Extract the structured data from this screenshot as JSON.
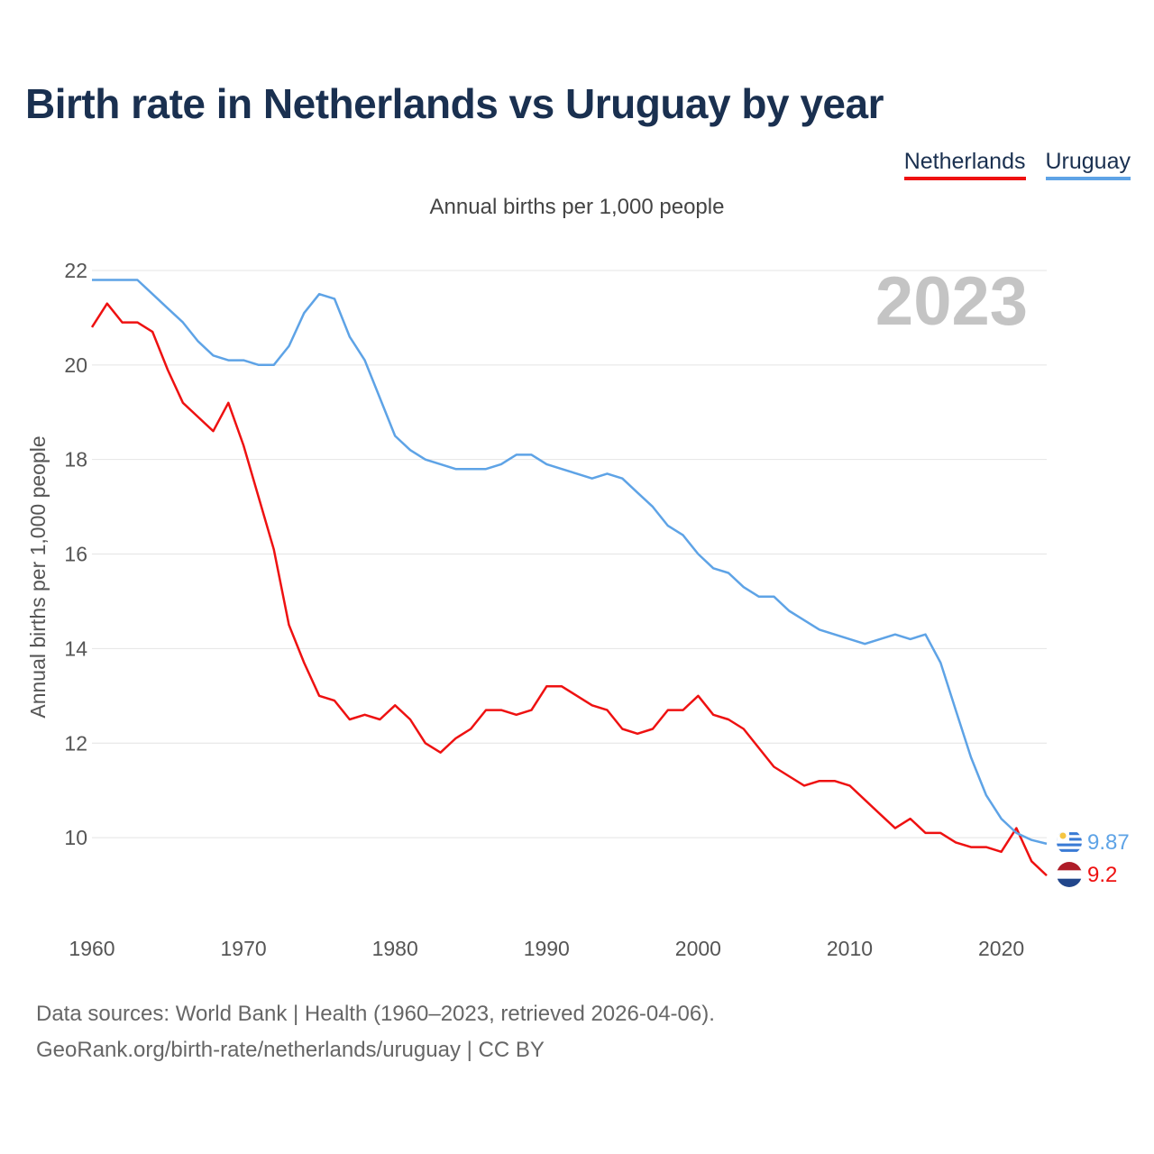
{
  "title": "Birth rate in Netherlands vs Uruguay by year",
  "legend": [
    {
      "label": "Netherlands",
      "color": "#ee1111"
    },
    {
      "label": "Uruguay",
      "color": "#5ea3e6"
    }
  ],
  "subtitle": "Annual births per 1,000 people",
  "source_line1": "Data sources: World Bank | Health (1960–2023, retrieved 2026-04-06).",
  "source_line2": "GeoRank.org/birth-rate/netherlands/uruguay | CC BY",
  "chart_data": {
    "type": "line",
    "title": "Birth rate in Netherlands vs Uruguay by year",
    "ylabel": "Annual births per 1,000 people",
    "xlabel": "",
    "year_label": "2023",
    "xlim": [
      1960,
      2023
    ],
    "ylim": [
      8.4,
      22.4
    ],
    "x_ticks": [
      1960,
      1970,
      1980,
      1990,
      2000,
      2010,
      2020
    ],
    "y_ticks": [
      10,
      12,
      14,
      16,
      18,
      20,
      22
    ],
    "grid": true,
    "series": [
      {
        "name": "Netherlands",
        "color": "#ee1111",
        "end_label": "9.2",
        "flag": "netherlands-flag-icon",
        "x": [
          1960,
          1961,
          1962,
          1963,
          1964,
          1965,
          1966,
          1967,
          1968,
          1969,
          1970,
          1971,
          1972,
          1973,
          1974,
          1975,
          1976,
          1977,
          1978,
          1979,
          1980,
          1981,
          1982,
          1983,
          1984,
          1985,
          1986,
          1987,
          1988,
          1989,
          1990,
          1991,
          1992,
          1993,
          1994,
          1995,
          1996,
          1997,
          1998,
          1999,
          2000,
          2001,
          2002,
          2003,
          2004,
          2005,
          2006,
          2007,
          2008,
          2009,
          2010,
          2011,
          2012,
          2013,
          2014,
          2015,
          2016,
          2017,
          2018,
          2019,
          2020,
          2021,
          2022,
          2023
        ],
        "values": [
          20.8,
          21.3,
          20.9,
          20.9,
          20.7,
          19.9,
          19.2,
          18.9,
          18.6,
          19.2,
          18.3,
          17.2,
          16.1,
          14.5,
          13.7,
          13.0,
          12.9,
          12.5,
          12.6,
          12.5,
          12.8,
          12.5,
          12.0,
          11.8,
          12.1,
          12.3,
          12.7,
          12.7,
          12.6,
          12.7,
          13.2,
          13.2,
          13.0,
          12.8,
          12.7,
          12.3,
          12.2,
          12.3,
          12.7,
          12.7,
          13.0,
          12.6,
          12.5,
          12.3,
          11.9,
          11.5,
          11.3,
          11.1,
          11.2,
          11.2,
          11.1,
          10.8,
          10.5,
          10.2,
          10.4,
          10.1,
          10.1,
          9.9,
          9.8,
          9.8,
          9.7,
          10.2,
          9.5,
          9.2
        ]
      },
      {
        "name": "Uruguay",
        "color": "#5ea3e6",
        "end_label": "9.87",
        "flag": "uruguay-flag-icon",
        "x": [
          1960,
          1961,
          1962,
          1963,
          1964,
          1965,
          1966,
          1967,
          1968,
          1969,
          1970,
          1971,
          1972,
          1973,
          1974,
          1975,
          1976,
          1977,
          1978,
          1979,
          1980,
          1981,
          1982,
          1983,
          1984,
          1985,
          1986,
          1987,
          1988,
          1989,
          1990,
          1991,
          1992,
          1993,
          1994,
          1995,
          1996,
          1997,
          1998,
          1999,
          2000,
          2001,
          2002,
          2003,
          2004,
          2005,
          2006,
          2007,
          2008,
          2009,
          2010,
          2011,
          2012,
          2013,
          2014,
          2015,
          2016,
          2017,
          2018,
          2019,
          2020,
          2021,
          2022,
          2023
        ],
        "values": [
          21.8,
          21.8,
          21.8,
          21.8,
          21.5,
          21.2,
          20.9,
          20.5,
          20.2,
          20.1,
          20.1,
          20.0,
          20.0,
          20.4,
          21.1,
          21.5,
          21.4,
          20.6,
          20.1,
          19.3,
          18.5,
          18.2,
          18.0,
          17.9,
          17.8,
          17.8,
          17.8,
          17.9,
          18.1,
          18.1,
          17.9,
          17.8,
          17.7,
          17.6,
          17.7,
          17.6,
          17.3,
          17.0,
          16.6,
          16.4,
          16.0,
          15.7,
          15.6,
          15.3,
          15.1,
          15.1,
          14.8,
          14.6,
          14.4,
          14.3,
          14.2,
          14.1,
          14.2,
          14.3,
          14.2,
          14.3,
          13.7,
          12.7,
          11.7,
          10.9,
          10.4,
          10.1,
          9.95,
          9.87
        ]
      }
    ]
  }
}
